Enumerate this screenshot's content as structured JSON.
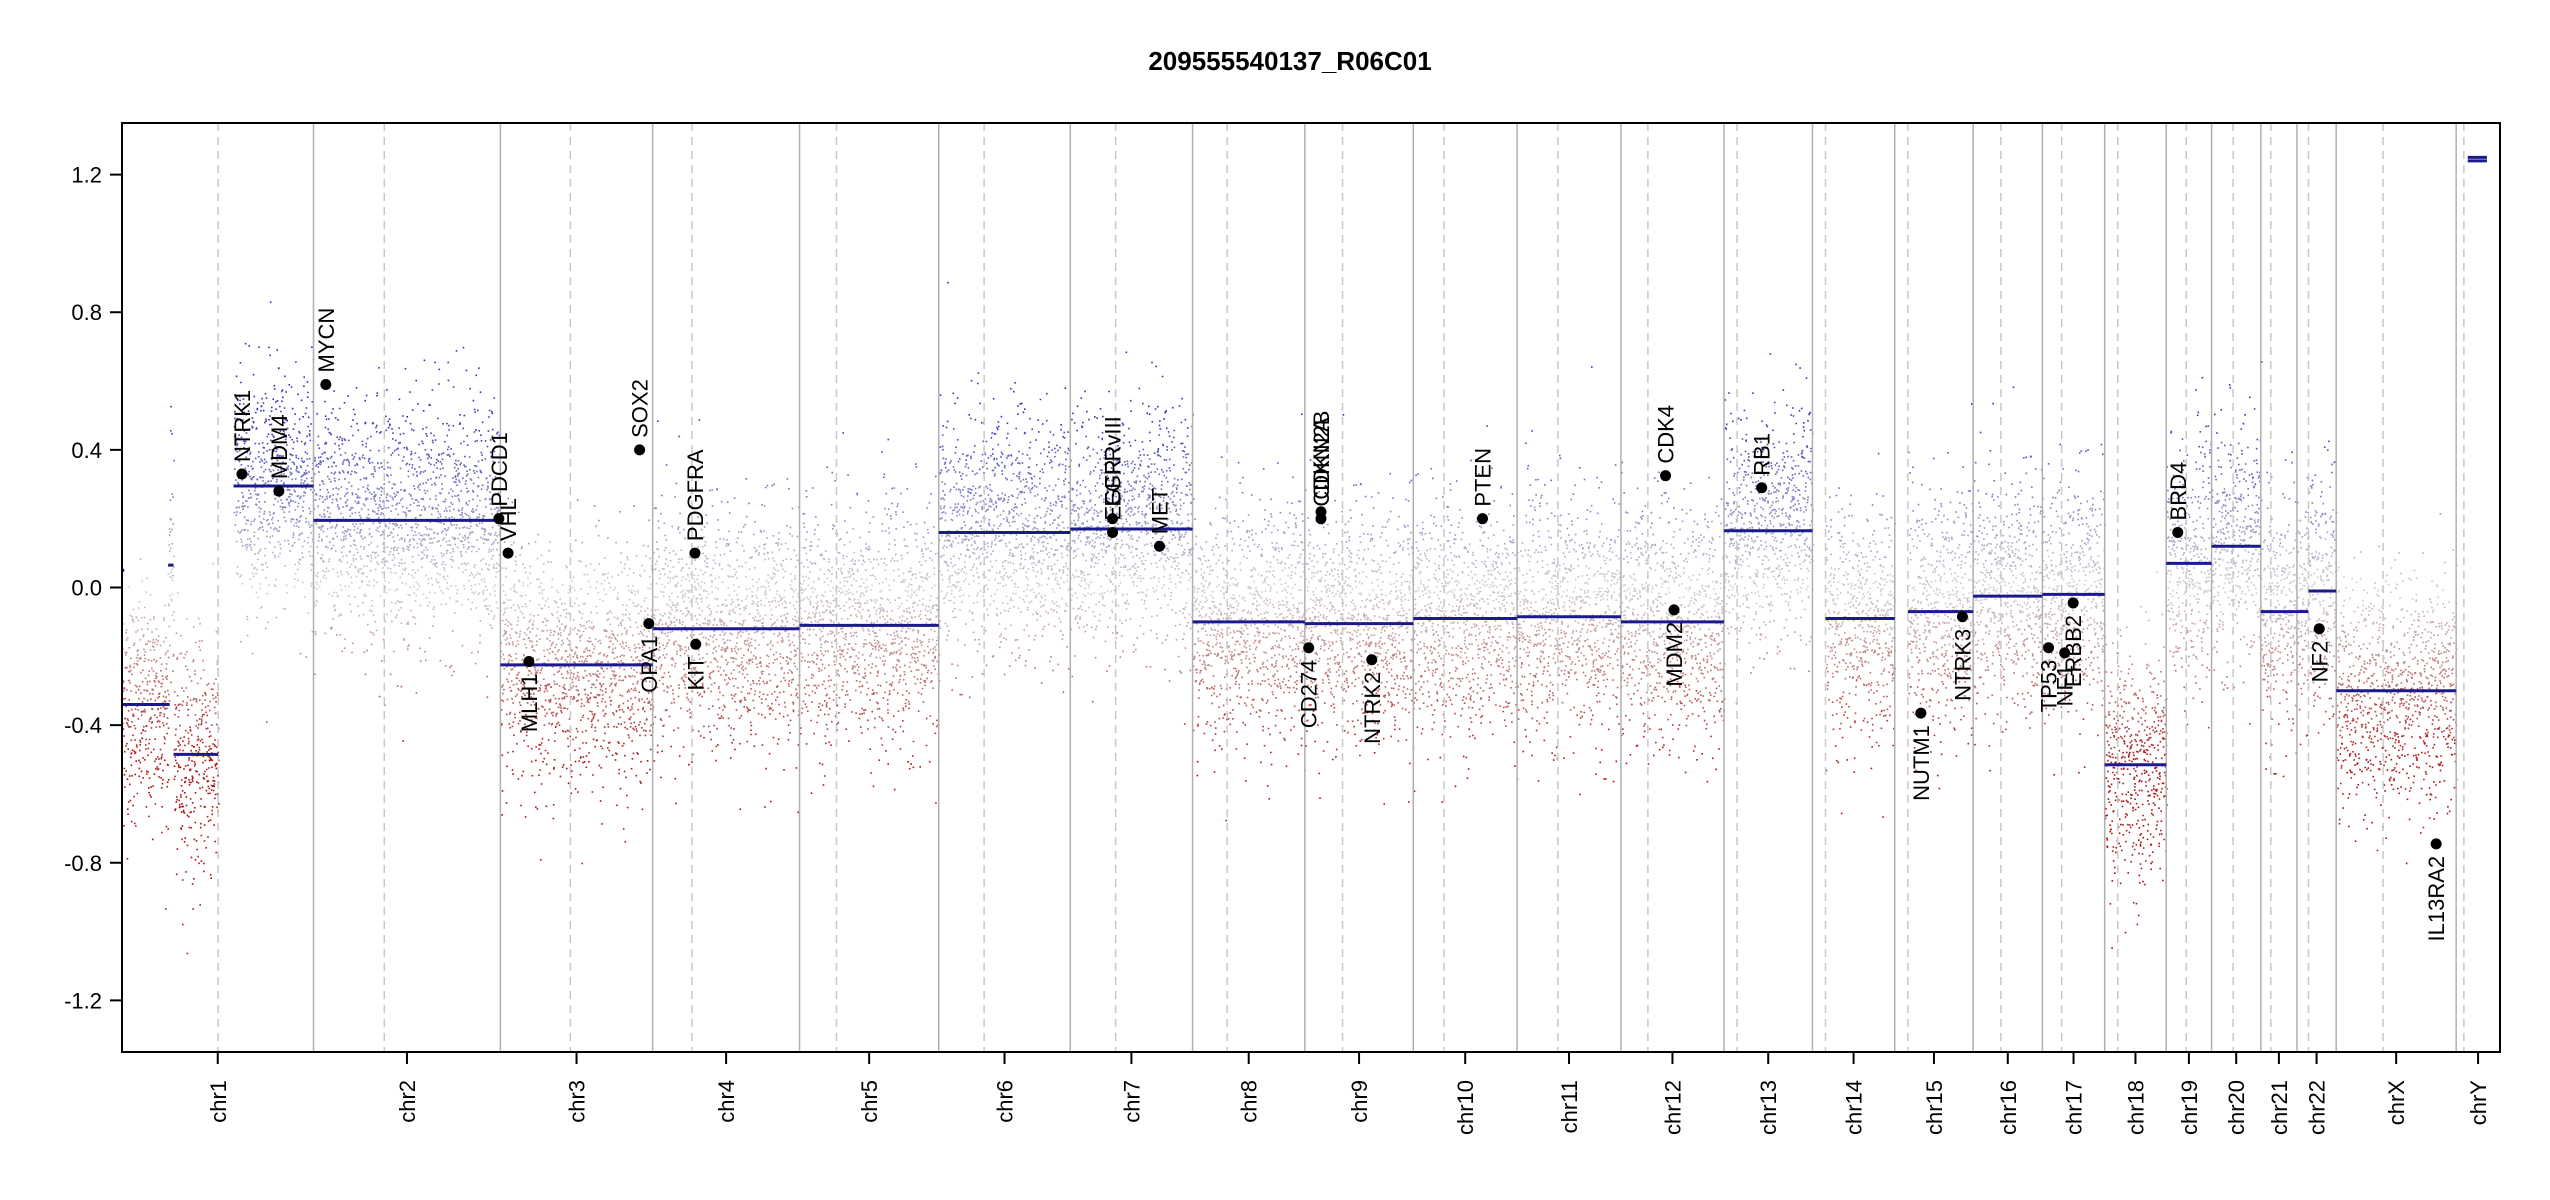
{
  "chart_data": {
    "type": "scatter",
    "title": "209555540137_R06C01",
    "ylim": [
      -1.35,
      1.35
    ],
    "yticks": [
      "-1.2",
      "-0.8",
      "-0.4",
      "0.0",
      "0.4",
      "0.8",
      "1.2"
    ],
    "ytick_values": [
      -1.2,
      -0.8,
      -0.4,
      0.0,
      0.4,
      0.8,
      1.2
    ],
    "grid": false,
    "chromosomes": [
      {
        "name": "chr1",
        "start": 0,
        "end": 249,
        "centromere": 125
      },
      {
        "name": "chr2",
        "start": 249,
        "end": 492,
        "centromere": 341
      },
      {
        "name": "chr3",
        "start": 492,
        "end": 690,
        "centromere": 583
      },
      {
        "name": "chr4",
        "start": 690,
        "end": 881,
        "centromere": 741
      },
      {
        "name": "chr5",
        "start": 881,
        "end": 1062,
        "centromere": 929
      },
      {
        "name": "chr6",
        "start": 1062,
        "end": 1233,
        "centromere": 1121
      },
      {
        "name": "chr7",
        "start": 1233,
        "end": 1392,
        "centromere": 1292
      },
      {
        "name": "chr8",
        "start": 1392,
        "end": 1538,
        "centromere": 1437
      },
      {
        "name": "chr9",
        "start": 1538,
        "end": 1679,
        "centromere": 1587
      },
      {
        "name": "chr10",
        "start": 1679,
        "end": 1814,
        "centromere": 1719
      },
      {
        "name": "chr11",
        "start": 1814,
        "end": 1949,
        "centromere": 1867
      },
      {
        "name": "chr12",
        "start": 1949,
        "end": 2083,
        "centromere": 1984
      },
      {
        "name": "chr13",
        "start": 2083,
        "end": 2198,
        "centromere": 2100
      },
      {
        "name": "chr14",
        "start": 2198,
        "end": 2305,
        "centromere": 2215
      },
      {
        "name": "chr15",
        "start": 2305,
        "end": 2407,
        "centromere": 2322
      },
      {
        "name": "chr16",
        "start": 2407,
        "end": 2497,
        "centromere": 2443
      },
      {
        "name": "chr17",
        "start": 2497,
        "end": 2578,
        "centromere": 2522
      },
      {
        "name": "chr18",
        "start": 2578,
        "end": 2658,
        "centromere": 2595
      },
      {
        "name": "chr19",
        "start": 2658,
        "end": 2717,
        "centromere": 2684
      },
      {
        "name": "chr20",
        "start": 2717,
        "end": 2781,
        "centromere": 2745
      },
      {
        "name": "chr21",
        "start": 2781,
        "end": 2828,
        "centromere": 2794
      },
      {
        "name": "chr22",
        "start": 2828,
        "end": 2879,
        "centromere": 2843
      },
      {
        "name": "chrX",
        "start": 2879,
        "end": 3035,
        "centromere": 2940
      },
      {
        "name": "chrY",
        "start": 3035,
        "end": 3092,
        "centromere": 3045
      }
    ],
    "segments": [
      {
        "start": 0,
        "end": 3,
        "value": 0.05
      },
      {
        "start": 0,
        "end": 62,
        "value": -0.34
      },
      {
        "start": 60,
        "end": 67,
        "value": 0.065
      },
      {
        "start": 67,
        "end": 125,
        "value": -0.485
      },
      {
        "start": 145,
        "end": 249,
        "value": 0.295
      },
      {
        "start": 249,
        "end": 492,
        "value": 0.195
      },
      {
        "start": 492,
        "end": 690,
        "value": -0.225
      },
      {
        "start": 690,
        "end": 881,
        "value": -0.12
      },
      {
        "start": 881,
        "end": 1062,
        "value": -0.11
      },
      {
        "start": 1062,
        "end": 1233,
        "value": 0.16
      },
      {
        "start": 1233,
        "end": 1392,
        "value": 0.17
      },
      {
        "start": 1392,
        "end": 1538,
        "value": -0.1
      },
      {
        "start": 1538,
        "end": 1679,
        "value": -0.105
      },
      {
        "start": 1679,
        "end": 1814,
        "value": -0.09
      },
      {
        "start": 1814,
        "end": 1949,
        "value": -0.085
      },
      {
        "start": 1949,
        "end": 2083,
        "value": -0.1
      },
      {
        "start": 2083,
        "end": 2198,
        "value": 0.165
      },
      {
        "start": 2215,
        "end": 2305,
        "value": -0.09
      },
      {
        "start": 2322,
        "end": 2407,
        "value": -0.07
      },
      {
        "start": 2407,
        "end": 2497,
        "value": -0.025
      },
      {
        "start": 2497,
        "end": 2578,
        "value": -0.02
      },
      {
        "start": 2578,
        "end": 2658,
        "value": -0.515
      },
      {
        "start": 2658,
        "end": 2717,
        "value": 0.07
      },
      {
        "start": 2717,
        "end": 2781,
        "value": 0.12
      },
      {
        "start": 2781,
        "end": 2828,
        "value": -0.07
      },
      {
        "start": 2828,
        "end": 2843,
        "value": -0.07
      },
      {
        "start": 2843,
        "end": 2879,
        "value": -0.01
      },
      {
        "start": 2879,
        "end": 3035,
        "value": -0.3
      },
      {
        "start": 3050,
        "end": 3075,
        "value": 1.24
      },
      {
        "start": 3050,
        "end": 3075,
        "value": 1.25
      }
    ],
    "genes": [
      {
        "name": "NTRK1",
        "pos": 156,
        "value": 0.33,
        "label": "above"
      },
      {
        "name": "MDM4",
        "pos": 204,
        "value": 0.28,
        "label": "above"
      },
      {
        "name": "MYCN",
        "pos": 265,
        "value": 0.59,
        "label": "above"
      },
      {
        "name": "PDCD1",
        "pos": 490,
        "value": 0.2,
        "label": "above"
      },
      {
        "name": "VHL",
        "pos": 502,
        "value": 0.1,
        "label": "above"
      },
      {
        "name": "MLH1",
        "pos": 529,
        "value": -0.215,
        "label": "below"
      },
      {
        "name": "SOX2",
        "pos": 673,
        "value": 0.4,
        "label": "above"
      },
      {
        "name": "OPA1",
        "pos": 685,
        "value": -0.105,
        "label": "below"
      },
      {
        "name": "PDGFRA",
        "pos": 745,
        "value": 0.1,
        "label": "above"
      },
      {
        "name": "KIT",
        "pos": 746,
        "value": -0.165,
        "label": "below"
      },
      {
        "name": "EGFR",
        "pos": 1288,
        "value": 0.16,
        "label": "above"
      },
      {
        "name": "EGFRvIII",
        "pos": 1288,
        "value": 0.2,
        "label": "above"
      },
      {
        "name": "MET",
        "pos": 1349,
        "value": 0.12,
        "label": "above"
      },
      {
        "name": "CD274",
        "pos": 1543,
        "value": -0.175,
        "label": "below"
      },
      {
        "name": "CDKN2A",
        "pos": 1559,
        "value": 0.2,
        "label": "above"
      },
      {
        "name": "CDKN2B",
        "pos": 1559,
        "value": 0.22,
        "label": "above"
      },
      {
        "name": "NTRK2",
        "pos": 1625,
        "value": -0.21,
        "label": "below"
      },
      {
        "name": "PTEN",
        "pos": 1769,
        "value": 0.2,
        "label": "above"
      },
      {
        "name": "CDK4",
        "pos": 2007,
        "value": 0.325,
        "label": "above"
      },
      {
        "name": "MDM2",
        "pos": 2018,
        "value": -0.065,
        "label": "below"
      },
      {
        "name": "RB1",
        "pos": 2132,
        "value": 0.29,
        "label": "above"
      },
      {
        "name": "NUTM1",
        "pos": 2339,
        "value": -0.365,
        "label": "below"
      },
      {
        "name": "NTRK3",
        "pos": 2393,
        "value": -0.085,
        "label": "below"
      },
      {
        "name": "TP53",
        "pos": 2505,
        "value": -0.175,
        "label": "below"
      },
      {
        "name": "NF1",
        "pos": 2526,
        "value": -0.19,
        "label": "below"
      },
      {
        "name": "ERBB2",
        "pos": 2537,
        "value": -0.045,
        "label": "below"
      },
      {
        "name": "BRD4",
        "pos": 2673,
        "value": 0.16,
        "label": "above"
      },
      {
        "name": "NF2",
        "pos": 2857,
        "value": -0.12,
        "label": "below"
      },
      {
        "name": "IL13RA2",
        "pos": 3009,
        "value": -0.745,
        "label": "below"
      }
    ]
  }
}
